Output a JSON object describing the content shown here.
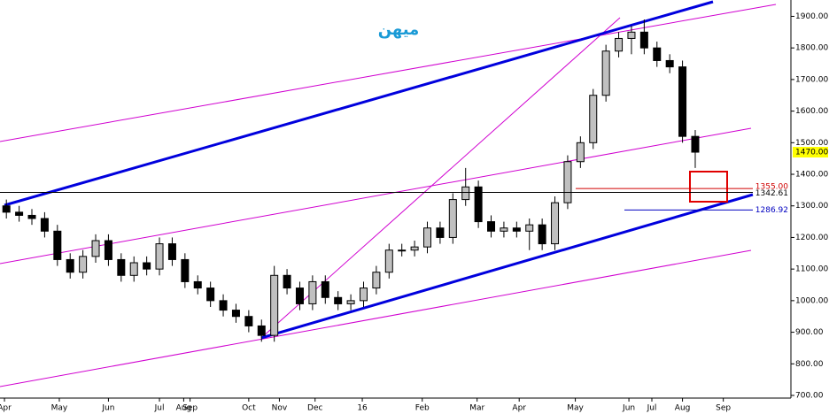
{
  "chart_data": {
    "type": "candlestick",
    "title": "میهن",
    "x": [
      0,
      1,
      2,
      3,
      4,
      5,
      6,
      7,
      8,
      9,
      10,
      11,
      12,
      13,
      14,
      15,
      16,
      17,
      18,
      19,
      20,
      21,
      22,
      23,
      24,
      25,
      26,
      27,
      28,
      29,
      30,
      31,
      32,
      33,
      34,
      35,
      36,
      37,
      38,
      39,
      40,
      41,
      42,
      43,
      44,
      45,
      46,
      47,
      48,
      49,
      50,
      51,
      52,
      53,
      54
    ],
    "open": [
      1300,
      1280,
      1270,
      1260,
      1220,
      1130,
      1090,
      1140,
      1190,
      1130,
      1080,
      1120,
      1100,
      1180,
      1130,
      1060,
      1040,
      1000,
      970,
      950,
      920,
      890,
      1080,
      1040,
      990,
      1060,
      1010,
      990,
      1000,
      1040,
      1090,
      1160,
      1160,
      1170,
      1230,
      1200,
      1320,
      1360,
      1250,
      1220,
      1230,
      1220,
      1240,
      1180,
      1310,
      1440,
      1500,
      1650,
      1790,
      1830,
      1850,
      1800,
      1760,
      1740,
      1520
    ],
    "high": [
      1320,
      1300,
      1290,
      1280,
      1240,
      1150,
      1160,
      1210,
      1210,
      1150,
      1140,
      1140,
      1200,
      1200,
      1150,
      1080,
      1060,
      1020,
      990,
      970,
      940,
      1110,
      1100,
      1060,
      1080,
      1080,
      1030,
      1020,
      1060,
      1110,
      1180,
      1180,
      1190,
      1250,
      1250,
      1340,
      1420,
      1380,
      1270,
      1250,
      1250,
      1260,
      1260,
      1330,
      1460,
      1520,
      1670,
      1810,
      1850,
      1870,
      1890,
      1820,
      1780,
      1760,
      1540
    ],
    "low": [
      1260,
      1250,
      1240,
      1200,
      1110,
      1070,
      1070,
      1120,
      1110,
      1060,
      1060,
      1080,
      1080,
      1110,
      1040,
      1020,
      980,
      950,
      930,
      900,
      870,
      870,
      1020,
      970,
      970,
      990,
      970,
      970,
      980,
      1020,
      1070,
      1140,
      1140,
      1150,
      1180,
      1180,
      1300,
      1230,
      1200,
      1200,
      1200,
      1160,
      1160,
      1160,
      1290,
      1420,
      1480,
      1630,
      1770,
      1780,
      1780,
      1740,
      1720,
      1500,
      1420
    ],
    "close": [
      1280,
      1270,
      1260,
      1220,
      1130,
      1090,
      1140,
      1190,
      1130,
      1080,
      1120,
      1100,
      1180,
      1130,
      1060,
      1040,
      1000,
      970,
      950,
      920,
      890,
      1080,
      1040,
      990,
      1060,
      1010,
      990,
      1000,
      1040,
      1090,
      1160,
      1160,
      1170,
      1230,
      1200,
      1320,
      1360,
      1250,
      1220,
      1230,
      1220,
      1240,
      1180,
      1310,
      1440,
      1500,
      1650,
      1790,
      1830,
      1850,
      1800,
      1760,
      1740,
      1520,
      1470
    ],
    "xlim": [
      0,
      62
    ],
    "xticks": [
      {
        "value": 0.35,
        "label": "Apr"
      },
      {
        "value": 4.65,
        "label": "May"
      },
      {
        "value": 8.5,
        "label": "Jun"
      },
      {
        "value": 12.5,
        "label": "Jul"
      },
      {
        "value": 14.4,
        "label": "Aug"
      },
      {
        "value": 14.9,
        "label": "Sep"
      },
      {
        "value": 19.5,
        "label": "Oct"
      },
      {
        "value": 21.9,
        "label": "Nov"
      },
      {
        "value": 24.7,
        "label": "Dec"
      },
      {
        "value": 28.4,
        "label": "16"
      },
      {
        "value": 33.1,
        "label": "Feb"
      },
      {
        "value": 37.4,
        "label": "Mar"
      },
      {
        "value": 40.7,
        "label": "Apr"
      },
      {
        "value": 45.1,
        "label": "May"
      },
      {
        "value": 49.3,
        "label": "Jun"
      },
      {
        "value": 51.1,
        "label": "Jul"
      },
      {
        "value": 53.5,
        "label": "Aug"
      },
      {
        "value": 56.7,
        "label": "Sep"
      }
    ],
    "ylim": [
      691.6,
      1951.7
    ],
    "yticks": [
      {
        "value": 700,
        "label": "700.00"
      },
      {
        "value": 800,
        "label": "800.00"
      },
      {
        "value": 900,
        "label": "900.00"
      },
      {
        "value": 1000,
        "label": "1000.00"
      },
      {
        "value": 1100,
        "label": "1100.00"
      },
      {
        "value": 1200,
        "label": "1200.00"
      },
      {
        "value": 1300,
        "label": "1300.00"
      },
      {
        "value": 1400,
        "label": "1400.00"
      },
      {
        "value": 1500,
        "label": "1500.00"
      },
      {
        "value": 1600,
        "label": "1600.00"
      },
      {
        "value": 1700,
        "label": "1700.00"
      },
      {
        "value": 1800,
        "label": "1800.00"
      },
      {
        "value": 1900,
        "label": "1900.00"
      }
    ],
    "levels": [
      {
        "value": 1355,
        "label": "1355.00",
        "color": "#d00000"
      },
      {
        "value": 1342.61,
        "label": "1342.61",
        "color": "#000000"
      },
      {
        "value": 1286.92,
        "label": "1286.92",
        "color": "#0000c0"
      }
    ],
    "last_price": {
      "value": 1470,
      "label": "1470.00",
      "color": "#ffff00"
    },
    "up_color": "#c0c0c0",
    "down_color": "#000000"
  }
}
